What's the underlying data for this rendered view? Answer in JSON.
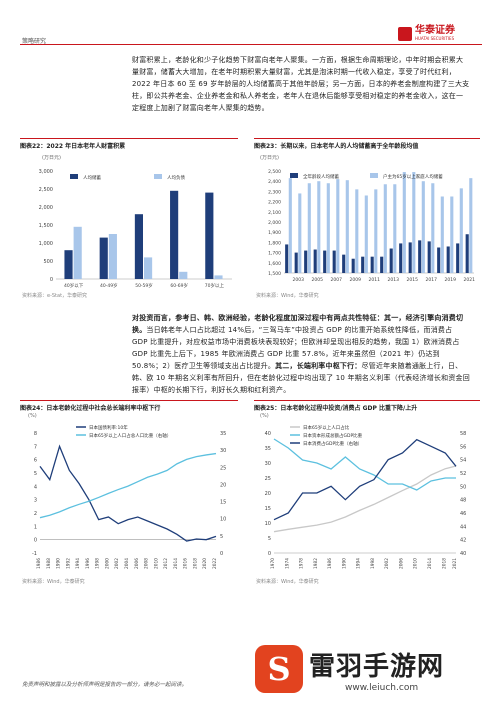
{
  "header": {
    "section": "策略研究",
    "brand_cn": "华泰证券",
    "brand_en": "HUATAI SECURITIES"
  },
  "para1": "财富积累上，老龄化和少子化趋势下财富向老年人聚集。一方面，根据生命周期理论，中年时期会积累大量财富，储蓄大大增加，在老年时期积累大量财富，尤其是泡沫时期一代收入稳定，享受了时代红利，2022 年日本 60 至 69 岁年龄层的人均储蓄高于其他年龄层；另一方面，日本的养老金制度构建了三大支柱，即公共养老金、企业养老金和私人养老金，老年人在退休后能够享受相对稳定的养老金收入，这在一定程度上加剧了财富向老年人聚集的趋势。",
  "fig22": {
    "caption": "图表22：2022 年日本老年人财富积累",
    "unit": "(万日元)",
    "source": "资料来源：e-Stat，华泰研究"
  },
  "fig23": {
    "caption": "图表23：长期以来，日本老年人的人均储蓄高于全年龄段均值",
    "unit": "(万日元)",
    "source": "资料来源：Wind，华泰研究"
  },
  "para2_bold1": "对投资而言，参考日、韩、欧洲经验，老龄化程度加深过程中有两点共性特征：其一，经济引擎向消费切换。",
  "para2_rest1": "当日韩老年人口占比超过 14%后，“三驾马车”中投资占 GDP 的比重开始系统性降低，而消费占 GDP 比重提升，对应权益市场中消费板块表现较好；但欧洲却呈现出相反的趋势，我国 1）欧洲消费占 GDP 比重先上后下，1985 年欧洲消费占 GDP 比重 57.8%，近年来虽然但（2021 年）仍达到 50.8%；2）医疗卫生等领域支出占比提升。",
  "para2_bold2": "其二，长端利率中枢下行：",
  "para2_rest2": "尽管近年来随着通胀上行，日、韩、欧 10 年期名义利率有所回升，但在老龄化过程中均出现了 10 年期名义利率（代表经济增长和资金回报率）中枢的长期下行，利好长久期和红利资产。",
  "fig24": {
    "caption": "图表24：日本老龄化过程中社会总长端利率中枢下行",
    "unit": "(%)",
    "source": "资料来源：Wind，华泰研究"
  },
  "fig25": {
    "caption": "图表25：日本老龄化过程中投资/消费占 GDP 比重下降/上升",
    "unit": "(%)",
    "source": "资料来源：Wind，华泰研究"
  },
  "footer": "免责声明和披露以及分析师声明是报告的一部分，请务必一起阅读。",
  "watermark": {
    "name": "雷羽手游网",
    "url": "www.leiuch.com",
    "glyph": "S"
  },
  "chart_data": [
    {
      "type": "bar",
      "categories": [
        "40岁以下",
        "40-49岁",
        "50-59岁",
        "60-69岁",
        "70岁以上"
      ],
      "series": [
        {
          "name": "人均储蓄",
          "values": [
            800,
            1150,
            1800,
            2450,
            2400
          ]
        },
        {
          "name": "人均负债",
          "values": [
            1450,
            1250,
            600,
            200,
            100
          ]
        }
      ],
      "ylim": [
        0,
        3000
      ]
    },
    {
      "type": "bar",
      "categories": [
        "2002",
        "2003",
        "2004",
        "2005",
        "2006",
        "2007",
        "2008",
        "2009",
        "2010",
        "2011",
        "2012",
        "2013",
        "2014",
        "2015",
        "2016",
        "2017",
        "2018",
        "2019",
        "2020",
        "2021"
      ],
      "series": [
        {
          "name": "全年龄段人均储蓄",
          "values": [
            1780,
            1700,
            1720,
            1730,
            1720,
            1720,
            1680,
            1640,
            1660,
            1660,
            1660,
            1740,
            1790,
            1800,
            1820,
            1810,
            1750,
            1760,
            1790,
            1880
          ]
        },
        {
          "name": "户主为65岁以上家庭人均储蓄",
          "values": [
            2430,
            2280,
            2380,
            2400,
            2380,
            2420,
            2410,
            2320,
            2260,
            2320,
            2370,
            2370,
            2490,
            2490,
            2400,
            2380,
            2250,
            2250,
            2330,
            2430
          ]
        }
      ],
      "ylim": [
        1500,
        2500
      ]
    },
    {
      "type": "line",
      "x": [
        1986,
        1988,
        1990,
        1992,
        1994,
        1996,
        1998,
        2000,
        2002,
        2004,
        2006,
        2008,
        2010,
        2012,
        2014,
        2016,
        2018,
        2020,
        2022
      ],
      "series": [
        {
          "name": "日本国债利率:10年",
          "values": [
            5.5,
            4.5,
            7.0,
            5.2,
            4.2,
            3.0,
            1.5,
            1.7,
            1.2,
            1.5,
            1.7,
            1.4,
            1.1,
            0.8,
            0.4,
            -0.1,
            0.05,
            0.0,
            0.25
          ]
        },
        {
          "name": "日本65岁以上人口占总人口比重（右轴）",
          "values": [
            10.3,
            11.0,
            12.0,
            13.2,
            14.2,
            15.1,
            16.2,
            17.4,
            18.5,
            19.5,
            20.8,
            22.1,
            23.0,
            24.1,
            26.0,
            27.3,
            28.1,
            28.6,
            29.0
          ]
        }
      ],
      "ylim": [
        -1,
        8
      ],
      "y2lim": [
        0,
        35
      ]
    },
    {
      "type": "line",
      "x": [
        1970,
        1974,
        1978,
        1982,
        1986,
        1990,
        1994,
        1998,
        2002,
        2006,
        2010,
        2014,
        2018,
        2021
      ],
      "series": [
        {
          "name": "日本65岁以上人口占比",
          "values": [
            7.1,
            7.9,
            8.6,
            9.3,
            10.3,
            12.0,
            14.2,
            16.2,
            18.5,
            20.8,
            23.0,
            26.0,
            28.1,
            29.0
          ]
        },
        {
          "name": "日本资本形成总额占GDP比重",
          "values": [
            38,
            35,
            31,
            30,
            28,
            32,
            28,
            26,
            23,
            23,
            21,
            24,
            25,
            25
          ]
        },
        {
          "name": "日本消费占GDP比重（右轴）",
          "values": [
            45,
            46,
            49,
            49,
            50,
            48,
            50,
            51,
            54,
            55,
            57,
            56,
            55,
            53
          ]
        }
      ],
      "ylim": [
        0,
        40
      ],
      "y2lim": [
        40,
        58
      ]
    }
  ]
}
